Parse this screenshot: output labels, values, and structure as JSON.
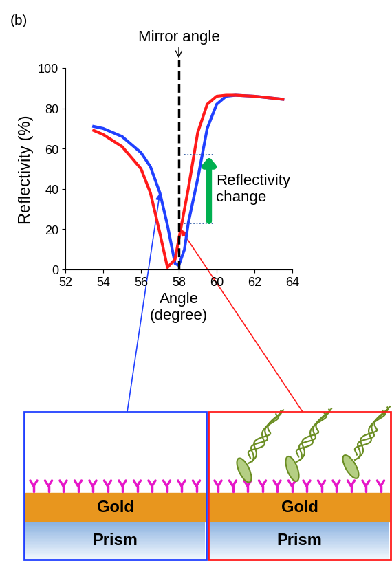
{
  "panel_label": "(b)",
  "chart_data": {
    "type": "line",
    "x": [
      53.5,
      54,
      55,
      56,
      56.5,
      57,
      57.4,
      57.8,
      58,
      58.3,
      58.5,
      59,
      59.5,
      60,
      60.5,
      61,
      62,
      63,
      63.5
    ],
    "series": [
      {
        "color": "#2040ff",
        "values": [
          71,
          70,
          66,
          58,
          51,
          38,
          22,
          3,
          2,
          10,
          23,
          45,
          70,
          82,
          86,
          86.5,
          86,
          85,
          84.5
        ]
      },
      {
        "color": "#ff1a1a",
        "values": [
          69,
          67,
          61,
          50,
          38,
          18,
          1,
          5,
          15,
          30,
          40,
          68,
          82,
          86,
          86.5,
          86.5,
          86,
          85,
          84.5
        ]
      }
    ],
    "x_label": "Angle\n(degree)",
    "y_label": "Reflectivity (%)",
    "xlim": [
      52,
      64
    ],
    "xticks": [
      52,
      54,
      56,
      58,
      60,
      62,
      64
    ],
    "ylim": [
      0,
      100
    ],
    "yticks": [
      0,
      20,
      40,
      60,
      80,
      100
    ],
    "annotations": [
      {
        "text": "Mirror angle",
        "x": 58
      },
      {
        "text": "Reflectivity\nchange",
        "x": 59.6,
        "y_from": 23,
        "y_to": 57
      }
    ]
  },
  "diagram": {
    "panels": [
      {
        "layers": [
          "Gold",
          "Prism"
        ]
      },
      {
        "layers": [
          "Gold",
          "Prism"
        ]
      }
    ]
  }
}
